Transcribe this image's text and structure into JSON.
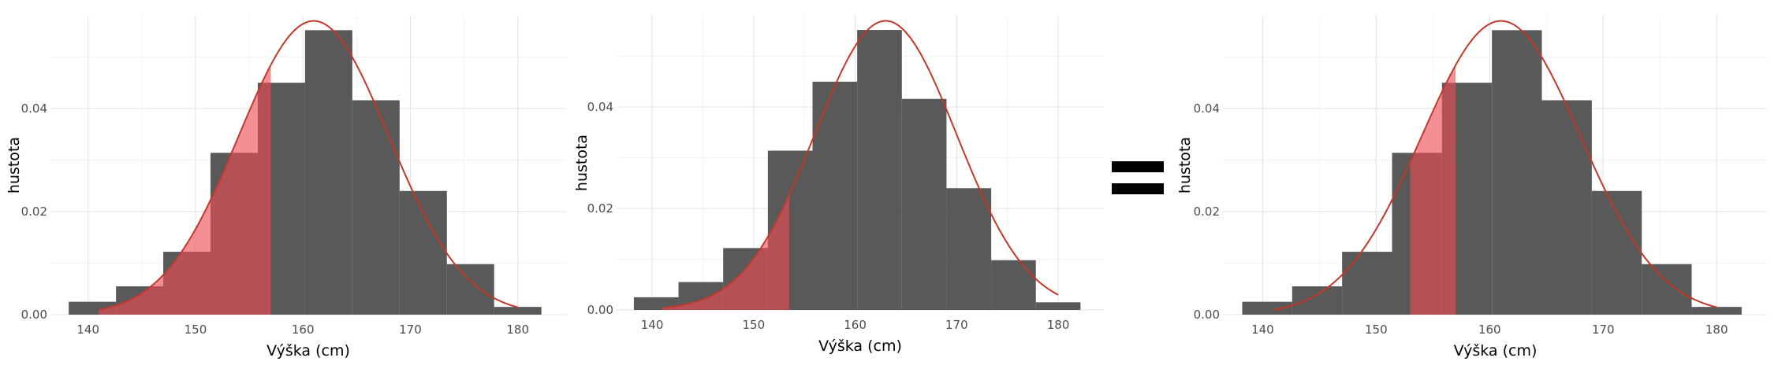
{
  "chart_data": [
    {
      "type": "bar",
      "xlabel": "Výška (cm)",
      "ylabel": "hustota",
      "x_ticks": [
        140,
        150,
        160,
        170,
        180
      ],
      "y_ticks": [
        "0.00",
        "0.02",
        "0.04"
      ],
      "xlim": [
        136.5,
        184.5
      ],
      "ylim": [
        0,
        0.058
      ],
      "bin_edges": [
        138.2,
        142.6,
        147.0,
        151.4,
        155.8,
        160.2,
        164.6,
        169.0,
        173.4,
        177.8,
        182.2
      ],
      "densities": [
        0.0025,
        0.0055,
        0.0122,
        0.0314,
        0.045,
        0.0552,
        0.0416,
        0.024,
        0.0098,
        0.0015
      ],
      "normal_curve": {
        "mean": 161,
        "sd": 7,
        "x_range": [
          141,
          180
        ]
      },
      "shaded_region": [
        null,
        157
      ],
      "bar_color": "#595959",
      "curve_color": "#c0392b",
      "shade_color": "#ef4b55"
    },
    {
      "type": "bar",
      "xlabel": "Výška (cm)",
      "ylabel": "hustota",
      "x_ticks": [
        140,
        150,
        160,
        170,
        180
      ],
      "y_ticks": [
        "0.00",
        "0.02",
        "0.04"
      ],
      "xlim": [
        136.5,
        184.5
      ],
      "ylim": [
        0,
        0.058
      ],
      "bin_edges": [
        138.2,
        142.6,
        147.0,
        151.4,
        155.8,
        160.2,
        164.6,
        169.0,
        173.4,
        177.8,
        182.2
      ],
      "densities": [
        0.0025,
        0.0055,
        0.0122,
        0.0314,
        0.045,
        0.0552,
        0.0416,
        0.024,
        0.0098,
        0.0015
      ],
      "normal_curve": {
        "mean": 163,
        "sd": 7,
        "x_range": [
          141,
          180
        ]
      },
      "shaded_region": [
        null,
        153.5
      ],
      "bar_color": "#595959",
      "curve_color": "#c0392b",
      "shade_color": "#ef4b55"
    },
    {
      "type": "bar",
      "xlabel": "Výška (cm)",
      "ylabel": "hustota",
      "x_ticks": [
        140,
        150,
        160,
        170,
        180
      ],
      "y_ticks": [
        "0.00",
        "0.02",
        "0.04"
      ],
      "xlim": [
        136.5,
        184.5
      ],
      "ylim": [
        0,
        0.058
      ],
      "bin_edges": [
        138.2,
        142.6,
        147.0,
        151.4,
        155.8,
        160.2,
        164.6,
        169.0,
        173.4,
        177.8,
        182.2
      ],
      "densities": [
        0.0025,
        0.0055,
        0.0122,
        0.0314,
        0.045,
        0.0552,
        0.0416,
        0.024,
        0.0098,
        0.0015
      ],
      "normal_curve": {
        "mean": 161,
        "sd": 7,
        "x_range": [
          141,
          180
        ]
      },
      "shaded_region": [
        153,
        157
      ],
      "bar_color": "#595959",
      "curve_color": "#c0392b",
      "shade_color": "#ef4b55"
    }
  ]
}
